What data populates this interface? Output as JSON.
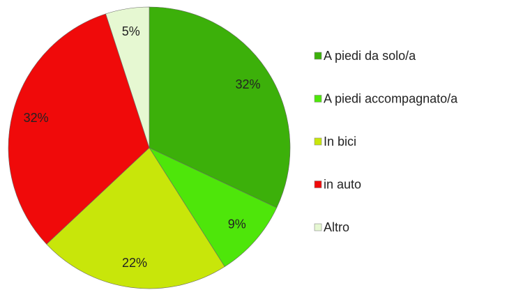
{
  "chart_data": {
    "type": "pie",
    "categories": [
      "A piedi da solo/a",
      "A piedi accompagnato/a",
      "In bici",
      "in auto",
      "Altro"
    ],
    "values": [
      32,
      9,
      22,
      32,
      5
    ],
    "value_labels": [
      "32%",
      "9%",
      "22%",
      "32%",
      "5%"
    ],
    "colors": [
      "#3cb00a",
      "#4ee60a",
      "#c8e60a",
      "#f00a0a",
      "#e6f8d2"
    ],
    "legend": "right"
  }
}
